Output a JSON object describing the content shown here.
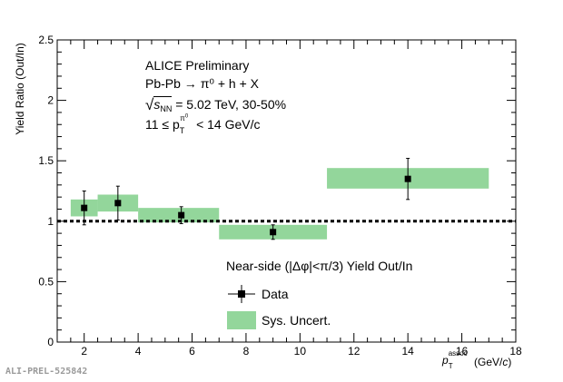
{
  "chart_data": {
    "type": "scatter",
    "title": "",
    "ylabel": "Yield Ratio (Out/In)",
    "xlabel": "p_T^assoc (GeV/c)",
    "xlim": [
      1,
      18
    ],
    "ylim": [
      0,
      2.5
    ],
    "x_ticks": [
      "2",
      "4",
      "6",
      "8",
      "10",
      "12",
      "14",
      "16",
      "18"
    ],
    "y_ticks": [
      "0",
      "0.5",
      "1",
      "1.5",
      "2",
      "2.5"
    ],
    "reference_line": 1,
    "grid": false,
    "series": [
      {
        "name": "Data",
        "points": [
          {
            "x": 2.0,
            "y": 1.11,
            "err_low": 0.14,
            "err_high": 0.14
          },
          {
            "x": 3.25,
            "y": 1.15,
            "err_low": 0.14,
            "err_high": 0.14
          },
          {
            "x": 5.6,
            "y": 1.05,
            "err_low": 0.07,
            "err_high": 0.07
          },
          {
            "x": 9.0,
            "y": 0.91,
            "err_low": 0.06,
            "err_high": 0.06
          },
          {
            "x": 14.0,
            "y": 1.35,
            "err_low": 0.17,
            "err_high": 0.17
          }
        ]
      },
      {
        "name": "Sys. Uncert.",
        "boxes": [
          {
            "x_low": 1.5,
            "x_high": 2.5,
            "y_low": 1.04,
            "y_high": 1.18
          },
          {
            "x_low": 2.5,
            "x_high": 4.0,
            "y_low": 1.08,
            "y_high": 1.22
          },
          {
            "x_low": 4.0,
            "x_high": 7.0,
            "y_low": 0.99,
            "y_high": 1.11
          },
          {
            "x_low": 7.0,
            "x_high": 11.0,
            "y_low": 0.85,
            "y_high": 0.97
          },
          {
            "x_low": 11.0,
            "x_high": 17.0,
            "y_low": 1.27,
            "y_high": 1.44
          }
        ]
      }
    ],
    "legend": {
      "placement": "bottom-center",
      "header": "Near-side (|Δφ|<π/3) Yield Out/In",
      "entries": [
        "Data",
        "Sys. Uncert."
      ]
    },
    "annotations": {
      "line1": "ALICE Preliminary",
      "line2": "Pb-Pb → π⁰ + h + X",
      "line3": "= 5.02 TeV, 30-50%",
      "line4_pre": "11 ≤ p",
      "line4_post": "< 14 GeV/c"
    },
    "watermark": "ALI-PREL-525842",
    "colors": {
      "band": "#93d69b",
      "marker": "#000000",
      "reference": "#000000"
    }
  }
}
